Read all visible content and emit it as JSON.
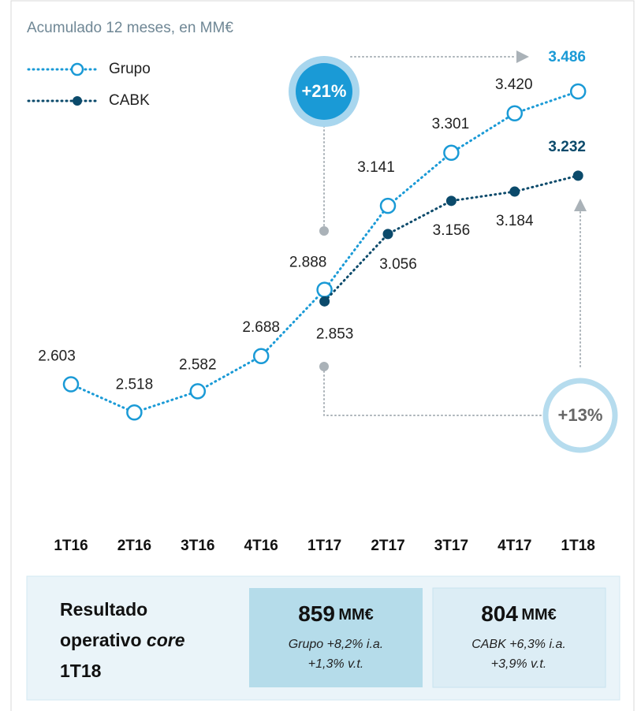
{
  "chart_data": {
    "type": "line",
    "title": "Acumulado 12 meses, en MM€",
    "categories": [
      "1T16",
      "2T16",
      "3T16",
      "4T16",
      "1T17",
      "2T17",
      "3T17",
      "4T17",
      "1T18"
    ],
    "series": [
      {
        "name": "Grupo",
        "color": "#1a9ad6",
        "marker": "open",
        "values": [
          2603,
          2518,
          2582,
          2688,
          2888,
          3141,
          3301,
          3420,
          3486
        ],
        "value_labels": [
          "2.603",
          "2.518",
          "2.582",
          "2.688",
          "2.888",
          "3.141",
          "3.301",
          "3.420",
          "3.486"
        ]
      },
      {
        "name": "CABK",
        "color": "#0b4a6b",
        "marker": "filled",
        "values": [
          null,
          null,
          null,
          null,
          2853,
          3056,
          3156,
          3184,
          3232
        ],
        "value_labels": [
          null,
          null,
          null,
          null,
          "2.853",
          "3.056",
          "3.156",
          "3.184",
          "3.232"
        ]
      }
    ],
    "ylim": [
      2300,
      3600
    ],
    "annotations": [
      "+21%",
      "+13%"
    ],
    "summary": {
      "label": [
        "Resultado",
        "operativo",
        "core",
        "1T18"
      ],
      "boxes": [
        {
          "value": "859",
          "unit": "MM€",
          "lines": [
            "Grupo +8,2% i.a.",
            "+1,3% v.t."
          ]
        },
        {
          "value": "804",
          "unit": "MM€",
          "lines": [
            "CABK +6,3% i.a.",
            "+3,9% v.t."
          ]
        }
      ]
    }
  }
}
